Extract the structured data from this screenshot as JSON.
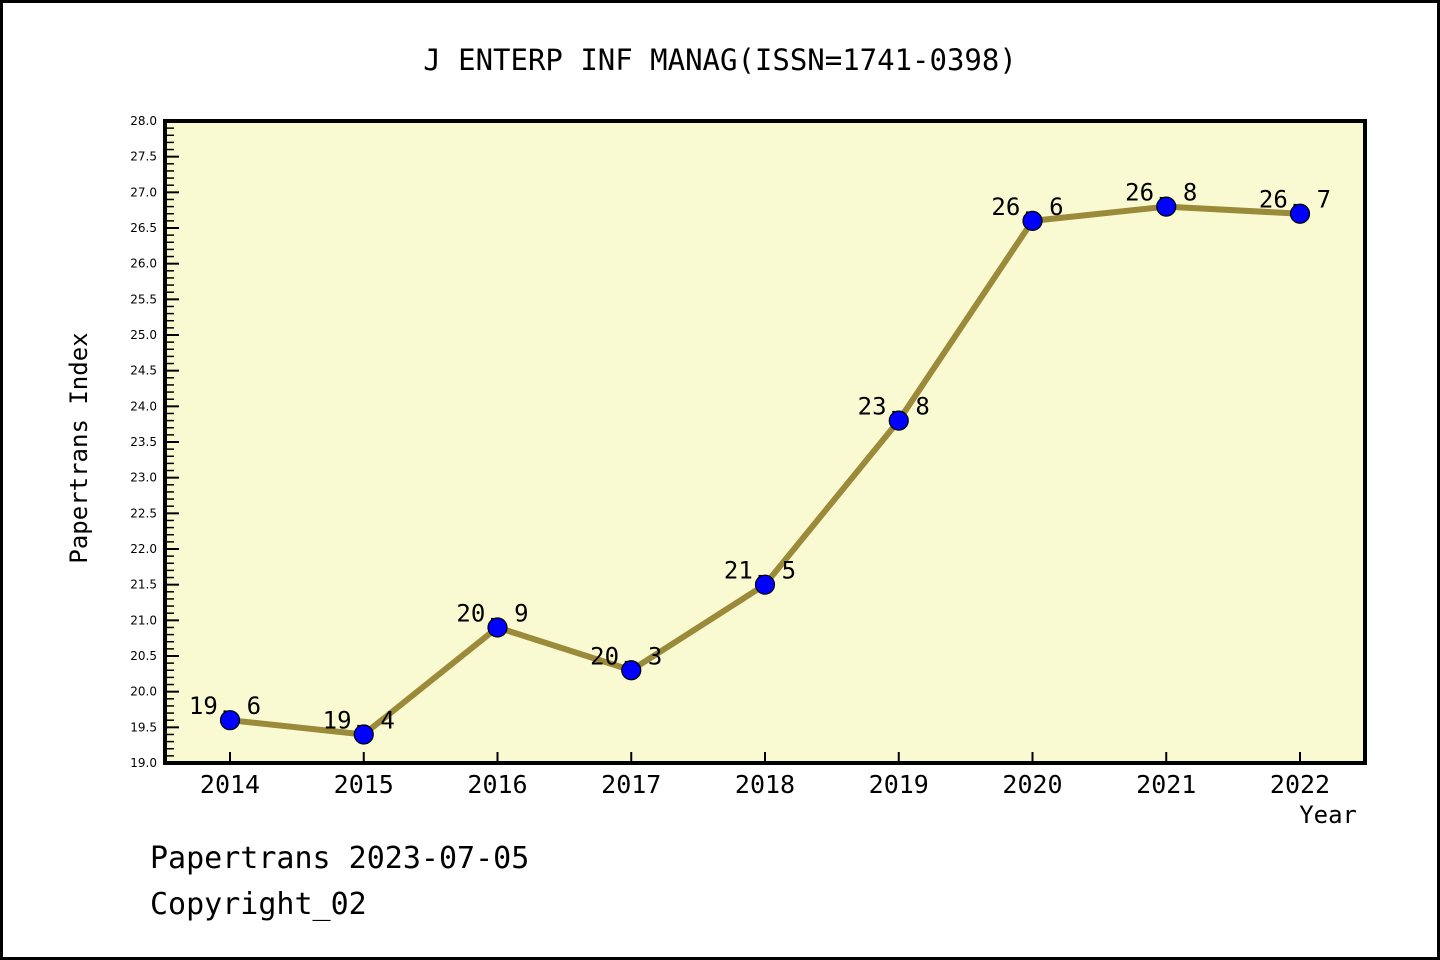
{
  "chart_data": {
    "type": "line",
    "title": "J ENTERP INF MANAG(ISSN=1741-0398)",
    "xlabel": "Year",
    "ylabel": "Papertrans Index",
    "categories": [
      2014,
      2015,
      2016,
      2017,
      2018,
      2019,
      2020,
      2021,
      2022
    ],
    "series": [
      {
        "name": "Papertrans Index",
        "values": [
          19.6,
          19.4,
          20.9,
          20.3,
          21.5,
          23.8,
          26.6,
          26.8,
          26.7
        ]
      }
    ],
    "ylim": [
      19.0,
      28.0
    ],
    "ytick_step": 0.5,
    "ytick_minor_step": 0.1,
    "grid": false,
    "legend": "none",
    "point_labels_shown": true,
    "colors": {
      "plot_background": "#FAFAD2",
      "line": "#9A8A3A",
      "marker_fill": "#0000FF",
      "marker_edge": "#000000",
      "axis": "#000000",
      "text": "#000000"
    }
  },
  "footer": {
    "line1": "Papertrans 2023-07-05",
    "line2": "Copyright_02"
  }
}
